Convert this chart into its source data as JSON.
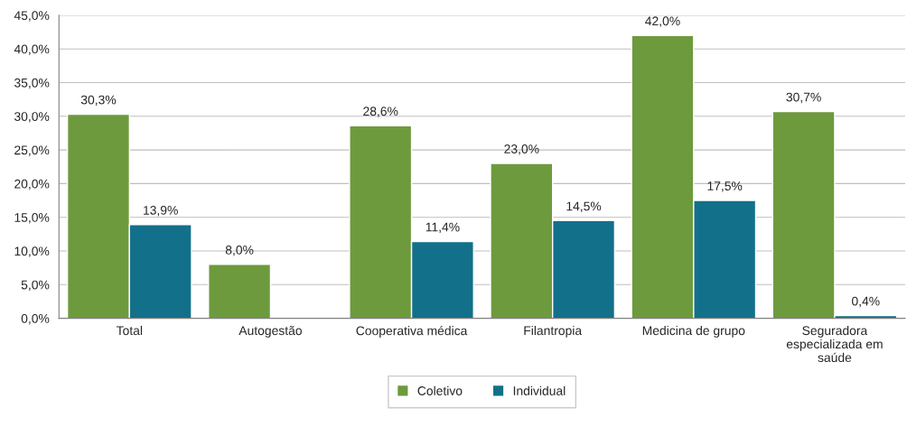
{
  "chart_data": {
    "type": "bar",
    "categories": [
      "Total",
      "Autogestão",
      "Cooperativa médica",
      "Filantropia",
      "Medicina de grupo",
      "Seguradora especializada em saúde"
    ],
    "series": [
      {
        "name": "Coletivo",
        "color": "#6e9a3e",
        "values": [
          30.3,
          8.0,
          28.6,
          23.0,
          42.0,
          30.7
        ],
        "value_labels": [
          "30,3%",
          "8,0%",
          "28,6%",
          "23,0%",
          "42,0%",
          "30,7%"
        ]
      },
      {
        "name": "Individual",
        "color": "#13708a",
        "values": [
          13.9,
          null,
          11.4,
          14.5,
          17.5,
          0.4
        ],
        "value_labels": [
          "13,9%",
          null,
          "11,4%",
          "14,5%",
          "17,5%",
          "0,4%"
        ]
      }
    ],
    "ylim": [
      0,
      45
    ],
    "yticks": [
      {
        "value": 0,
        "label": "0,0%"
      },
      {
        "value": 5,
        "label": "5,0%"
      },
      {
        "value": 10,
        "label": "10,0%"
      },
      {
        "value": 15,
        "label": "15,0%"
      },
      {
        "value": 20,
        "label": "20,0%"
      },
      {
        "value": 25,
        "label": "25,0%"
      },
      {
        "value": 30,
        "label": "30,0%"
      },
      {
        "value": 35,
        "label": "35,0%"
      },
      {
        "value": 40,
        "label": "40,0%"
      },
      {
        "value": 45,
        "label": "45,0%"
      }
    ],
    "grid": "y",
    "legend": "bottom"
  }
}
